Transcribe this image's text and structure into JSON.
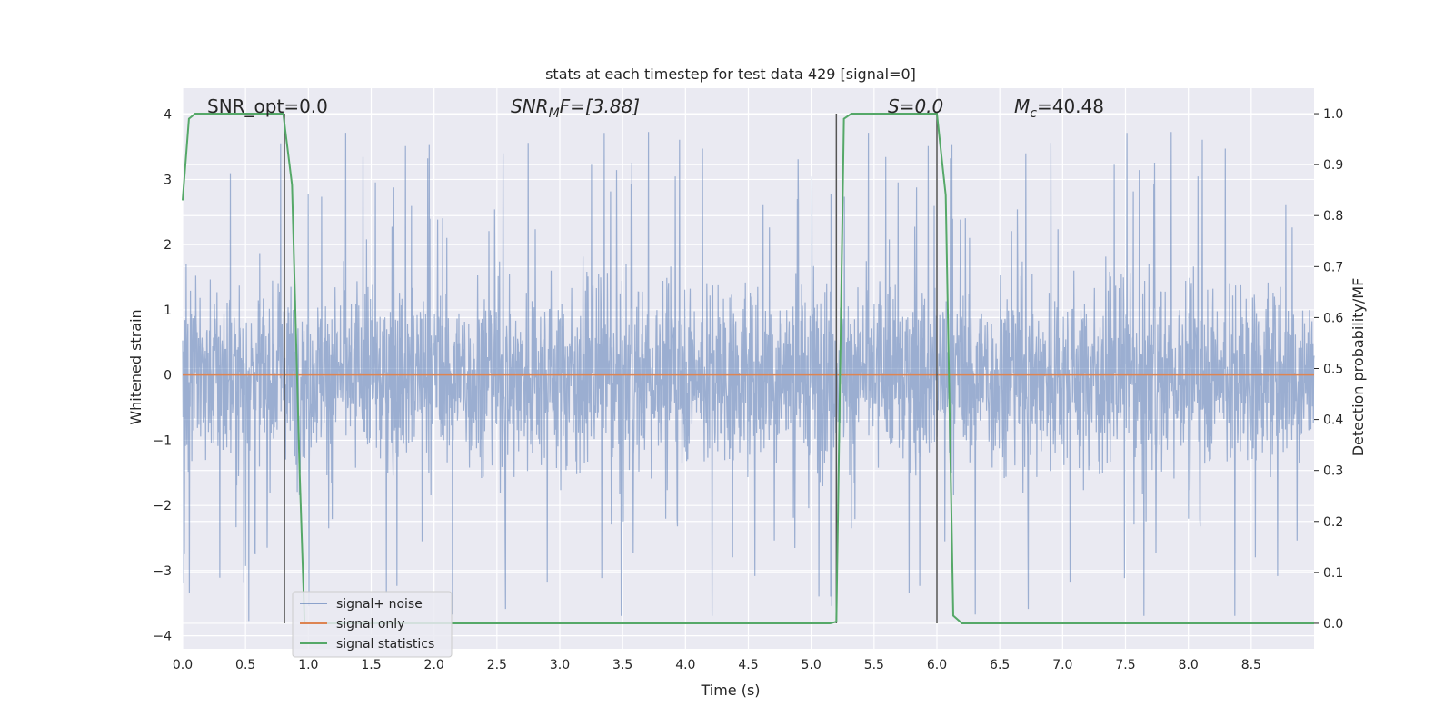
{
  "chart_data": {
    "type": "line",
    "title": "stats at each timestep for test data 429 [signal=0]",
    "xlabel": "Time (s)",
    "ylabel_left": "Whitened strain",
    "ylabel_right": "Detection probability/MF",
    "xlim": [
      0.0,
      9.0
    ],
    "ylim_left": [
      -4.2,
      4.4
    ],
    "ylim_right": [
      -0.05,
      1.05
    ],
    "x_ticks": [
      "0.0",
      "0.5",
      "1.0",
      "1.5",
      "2.0",
      "2.5",
      "3.0",
      "3.5",
      "4.0",
      "4.5",
      "5.0",
      "5.5",
      "6.0",
      "6.5",
      "7.0",
      "7.5",
      "8.0",
      "8.5"
    ],
    "y_ticks_left": [
      "−4",
      "−3",
      "−2",
      "−1",
      "0",
      "1",
      "2",
      "3",
      "4"
    ],
    "y_ticks_right": [
      "0.0",
      "0.1",
      "0.2",
      "0.3",
      "0.4",
      "0.5",
      "0.6",
      "0.7",
      "0.8",
      "0.9",
      "1.0"
    ],
    "grid": true,
    "legend_position": "bottom-left",
    "annotations": {
      "snr_opt": "SNR_opt=0.0",
      "snr_mf_main": "SNR",
      "snr_mf_sub": "M",
      "snr_mf_rest": "F=[3.88]",
      "s_val": "S=0.0",
      "mc_main": "M",
      "mc_sub": "c",
      "mc_rest": "=40.48"
    },
    "series": [
      {
        "name": "signal+ noise",
        "color": "#4c72b0",
        "axis": "left",
        "description": "noise trace, dense band approx ±1.7 with spikes to about ±4"
      },
      {
        "name": "signal only",
        "color": "#dd8452",
        "axis": "left",
        "x": [
          0.0,
          9.0
        ],
        "y": [
          0.0,
          0.0
        ]
      },
      {
        "name": "signal statistics",
        "color": "#55a868",
        "axis": "right",
        "x": [
          0.0,
          0.05,
          0.1,
          0.78,
          0.8,
          0.87,
          0.93,
          0.97,
          5.15,
          5.2,
          5.26,
          5.32,
          5.98,
          6.0,
          6.07,
          6.13,
          6.2,
          9.0
        ],
        "y": [
          0.83,
          0.99,
          1.0,
          1.0,
          1.0,
          0.86,
          0.3,
          0.0,
          0.0,
          0.003,
          0.99,
          1.0,
          1.0,
          1.0,
          0.84,
          0.015,
          0.0,
          0.0
        ]
      }
    ],
    "vertical_lines": [
      0.81,
      5.2,
      6.0
    ]
  }
}
